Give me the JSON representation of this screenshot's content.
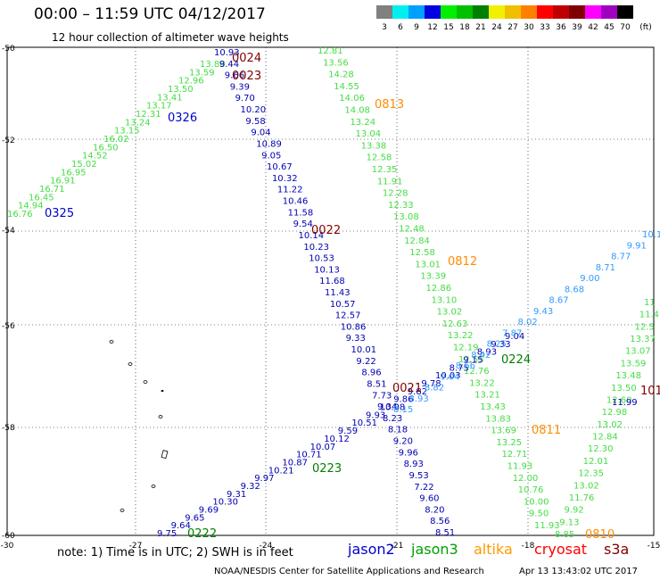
{
  "header": {
    "title": "00:00 – 11:59 UTC 04/12/2017",
    "subtitle": "12 hour collection of altimeter wave heights"
  },
  "legend": {
    "swatches": [
      {
        "label": "3",
        "color": "#808080"
      },
      {
        "label": "6",
        "color": "#00f0f0"
      },
      {
        "label": "9",
        "color": "#00a0ff"
      },
      {
        "label": "12",
        "color": "#0000e0"
      },
      {
        "label": "15",
        "color": "#00f000"
      },
      {
        "label": "18",
        "color": "#00c000"
      },
      {
        "label": "21",
        "color": "#008000"
      },
      {
        "label": "24",
        "color": "#f0f000"
      },
      {
        "label": "27",
        "color": "#f0c000"
      },
      {
        "label": "30",
        "color": "#ff8000"
      },
      {
        "label": "33",
        "color": "#ff0000"
      },
      {
        "label": "36",
        "color": "#c00000"
      },
      {
        "label": "39",
        "color": "#800000"
      },
      {
        "label": "42",
        "color": "#ff00ff"
      },
      {
        "label": "45",
        "color": "#a000c0"
      },
      {
        "label": "70",
        "color": "#000000"
      }
    ],
    "unit": "(ft)"
  },
  "map": {
    "lon_ticks": [
      "-30",
      "-27",
      "-24",
      "-21",
      "-18",
      "-15"
    ],
    "lat_ticks": [
      "-50",
      "-52",
      "-54",
      "-56",
      "-58",
      "-60"
    ],
    "tracks": {
      "jason3_a": {
        "color": "#44dd44",
        "values": [
          "16.76",
          "14.94",
          "16.45",
          "16.71",
          "16.91",
          "16.95",
          "15.02",
          "14.52",
          "16.50",
          "16.02",
          "13.15",
          "13.24",
          "12.31",
          "13.17",
          "13.41",
          "13.50",
          "12.96",
          "13.59",
          "13.88"
        ]
      },
      "jason2_a": {
        "color": "#0000b0",
        "values": [
          "10.93",
          "9.44",
          "9.66",
          "9.39",
          "9.70",
          "10.20",
          "9.58",
          "9.04",
          "10.89",
          "9.05",
          "10.67",
          "10.32",
          "11.22",
          "10.46",
          "11.58",
          "9.54",
          "10.14",
          "10.23",
          "10.53",
          "10.13",
          "11.68",
          "11.43",
          "10.57",
          "12.57",
          "10.86",
          "9.33",
          "10.01",
          "9.22",
          "8.96",
          "8.51",
          "7.73",
          "9.34",
          "8.23",
          "8.18",
          "9.20",
          "9.96",
          "8.93",
          "9.53",
          "7.22",
          "9.60",
          "8.20",
          "8.56",
          "8.51"
        ]
      },
      "jason3_b": {
        "color": "#44dd44",
        "values": [
          "12.81",
          "13.56",
          "14.28",
          "14.55",
          "14.06",
          "14.08",
          "13.24",
          "13.04",
          "13.38",
          "12.58",
          "12.35",
          "11.91",
          "12.28",
          "12.33",
          "13.08",
          "12.48",
          "12.84",
          "12.58",
          "13.01",
          "13.39",
          "12.86",
          "13.10",
          "13.02",
          "12.63",
          "13.22",
          "12.19",
          "12.55",
          "12.76",
          "13.22",
          "13.21",
          "13.43",
          "13.83",
          "13.69",
          "13.25",
          "12.71",
          "11.93",
          "12.00",
          "10.76",
          "10.00",
          "9.50",
          "11.93"
        ]
      },
      "jason2_b": {
        "color": "#0000b0",
        "values": [
          "9.75",
          "9.64",
          "9.65",
          "9.69",
          "10.30",
          "9.31",
          "9.32",
          "9.97",
          "10.21",
          "10.87",
          "10.71",
          "10.07",
          "10.12",
          "9.59",
          "10.51",
          "9.93",
          "10.08",
          "9.86",
          "9.82",
          "9.78",
          "10.03",
          "8.75",
          "9.15",
          "8.93",
          "9.33",
          "9.04"
        ]
      },
      "jason2_c": {
        "color": "#3399ff",
        "values": [
          "8.15",
          "8.93",
          "8.82",
          "9.04",
          "8.66",
          "8.42",
          "8.25",
          "7.87",
          "8.02",
          "9.43",
          "8.67",
          "8.68",
          "9.00",
          "8.71",
          "8.77",
          "9.91",
          "10.1"
        ]
      },
      "jason3_c": {
        "color": "#44dd44",
        "values": [
          "8.85",
          "9.13",
          "9.92",
          "11.76",
          "13.02",
          "12.35",
          "12.01",
          "12.30",
          "12.84",
          "13.02",
          "12.98",
          "12.60",
          "13.50",
          "13.48",
          "13.59",
          "13.07",
          "13.37",
          "12.5",
          "11.4",
          "11"
        ]
      },
      "jason2_d": {
        "color": "#0000b0",
        "values": [
          "11.99"
        ]
      }
    },
    "time_labels": [
      {
        "text": "0325",
        "color": "#0000cc"
      },
      {
        "text": "0326",
        "color": "#0000cc"
      },
      {
        "text": "0024",
        "color": "#800000"
      },
      {
        "text": "0023",
        "color": "#800000"
      },
      {
        "text": "0813",
        "color": "#ff8c00"
      },
      {
        "text": "0022",
        "color": "#800000"
      },
      {
        "text": "0812",
        "color": "#ff8c00"
      },
      {
        "text": "0224",
        "color": "#008000"
      },
      {
        "text": "0021",
        "color": "#800000"
      },
      {
        "text": "101",
        "color": "#800000"
      },
      {
        "text": "0811",
        "color": "#ff8c00"
      },
      {
        "text": "0223",
        "color": "#008000"
      },
      {
        "text": "0222",
        "color": "#008000"
      },
      {
        "text": "0810",
        "color": "#ff8c00"
      }
    ]
  },
  "footer": {
    "note": "note:  1) Time is in UTC;  2) SWH is in feet",
    "sats": [
      {
        "name": "jason2",
        "color": "#0000cc"
      },
      {
        "name": "jason3",
        "color": "#00a000"
      },
      {
        "name": "altika",
        "color": "#ff9900"
      },
      {
        "name": "cryosat",
        "color": "#ff0000"
      },
      {
        "name": "s3a",
        "color": "#800000"
      }
    ],
    "credit": "NOAA/NESDIS Center for Satellite Applications and Research",
    "timestamp": "Apr 13 13:43:02 UTC 2017"
  }
}
